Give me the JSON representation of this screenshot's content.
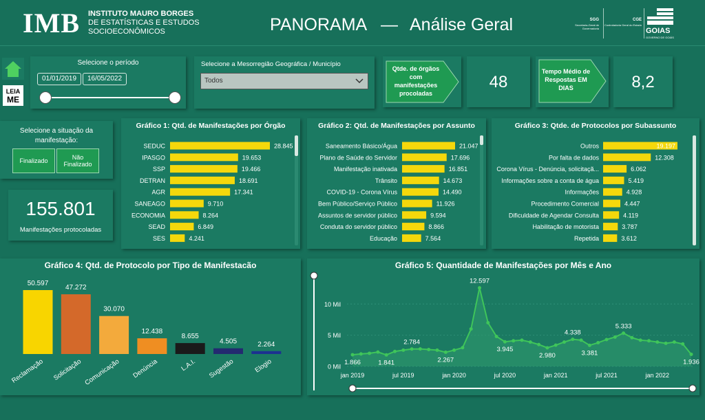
{
  "header": {
    "logo": "IMB",
    "institute": [
      "INSTITUTO MAURO BORGES",
      "DE ESTATÍSTICAS E ESTUDOS",
      "SOCIOECONÔMICOS"
    ],
    "title": "PANORAMA",
    "separator": "—",
    "subtitle": "Análise Geral",
    "partners": [
      {
        "abbr": "SGG",
        "name": "Secretaria-Geral de Governadoria"
      },
      {
        "abbr": "CGE",
        "name": "Controladoria Geral do Estado"
      },
      {
        "abbr": "GOIAS",
        "name": "GOVERNO DE GOIÁS"
      }
    ]
  },
  "filters": {
    "read_me": [
      "LEIA",
      "ME"
    ],
    "period_label": "Selecione o período",
    "start_date": "01/01/2019",
    "end_date": "16/05/2022",
    "region_label": "Selecione a Mesorregião Geográfica / Município",
    "region_value": "Todos",
    "status_label": "Selecione a situação da manifestação:",
    "status_options": [
      "Finalizado",
      "Não Finalizado"
    ]
  },
  "kpis": [
    {
      "label": "Qtde. de órgãos com manifestações procoladas",
      "value": "48"
    },
    {
      "label": "Tempo Médio de Respostas EM DIAS",
      "value": "8,2"
    },
    {
      "value": "155.801",
      "label": "Manifestações protocoladas"
    }
  ],
  "chart_data": [
    {
      "type": "bar",
      "orientation": "horizontal",
      "title": "Gráfico 1: Qtd. de Manifestações por Órgão",
      "color": "#f5d80c",
      "categories": [
        "SEDUC",
        "IPASGO",
        "SSP",
        "DETRAN",
        "AGR",
        "SANEAGO",
        "ECONOMIA",
        "SEAD",
        "SES"
      ],
      "values": [
        28845,
        19653,
        19466,
        18691,
        17341,
        9710,
        8264,
        6849,
        4241
      ],
      "value_labels": [
        "28.845",
        "19.653",
        "19.466",
        "18.691",
        "17.341",
        "9.710",
        "8.264",
        "6.849",
        "4.241"
      ]
    },
    {
      "type": "bar",
      "orientation": "horizontal",
      "title": "Gráfico 2: Qtd. de Manifestações por Assunto",
      "color": "#f5d80c",
      "categories": [
        "Saneamento Básico/Água",
        "Plano de Saúde do Servidor",
        "Manifestação inativada",
        "Trânsito",
        "COVID-19 - Corona Vírus",
        "Bem Público/Serviço Público",
        "Assuntos de servidor público",
        "Conduta do servidor público",
        "Educação"
      ],
      "values": [
        21047,
        17696,
        16851,
        14673,
        14490,
        11926,
        9594,
        8866,
        7564
      ],
      "value_labels": [
        "21.047",
        "17.696",
        "16.851",
        "14.673",
        "14.490",
        "11.926",
        "9.594",
        "8.866",
        "7.564"
      ]
    },
    {
      "type": "bar",
      "orientation": "horizontal",
      "title": "Gráfico 3: Qtde. de Protocolos por Subassunto",
      "color": "#f5d80c",
      "categories": [
        "Outros",
        "Por falta de dados",
        "Corona Vírus - Denúncia, solicitaçã...",
        "Informações sobre a conta de água",
        "Informações",
        "Procedimento Comercial",
        "Dificuldade de Agendar Consulta",
        "Habilitação de motorista",
        "Repetida"
      ],
      "values": [
        19197,
        12308,
        6062,
        5419,
        4928,
        4447,
        4119,
        3787,
        3612
      ],
      "value_labels": [
        "19.197",
        "12.308",
        "6.062",
        "5.419",
        "4.928",
        "4.447",
        "4.119",
        "3.787",
        "3.612"
      ]
    },
    {
      "type": "bar",
      "orientation": "vertical",
      "title": "Gráfico 4: Qtd. de Protocolo por Tipo de Manifestacão",
      "categories": [
        "Reclamação",
        "Solicitação",
        "Comunicação",
        "Denúncia",
        "L.A.I.",
        "Sugestão",
        "Elogio"
      ],
      "values": [
        50597,
        47272,
        30070,
        12438,
        8655,
        4505,
        2264
      ],
      "value_labels": [
        "50.597",
        "47.272",
        "30.070",
        "12.438",
        "8.655",
        "4.505",
        "2.264"
      ],
      "colors": [
        "#f8d500",
        "#d4692a",
        "#f3aa3c",
        "#ef8e22",
        "#1a1a1a",
        "#232a70",
        "#1c3190"
      ]
    },
    {
      "type": "line",
      "title": "Gráfico 5: Quantidade de Manifestações por Mês e Ano",
      "color": "#3fc55a",
      "categories": [
        "jan 2019",
        null,
        null,
        null,
        null,
        null,
        "jul 2019",
        null,
        null,
        null,
        null,
        null,
        "jan 2020",
        null,
        null,
        null,
        null,
        null,
        "jul 2020",
        null,
        null,
        null,
        null,
        null,
        "jan 2021",
        null,
        null,
        null,
        null,
        null,
        "jul 2021",
        null,
        null,
        null,
        null,
        null,
        "jan 2022",
        null,
        null,
        null,
        null
      ],
      "values": [
        1866,
        2000,
        2100,
        2300,
        1841,
        2400,
        2600,
        2784,
        2800,
        2700,
        2600,
        2267,
        2600,
        3000,
        6000,
        12597,
        7000,
        4800,
        3945,
        4100,
        4200,
        3900,
        3500,
        2980,
        3400,
        3900,
        4338,
        4200,
        3381,
        3800,
        4300,
        4700,
        5333,
        4600,
        4200,
        4100,
        3900,
        3700,
        3900,
        3600,
        1936
      ],
      "value_labels": [
        "1.866",
        null,
        null,
        null,
        "1.841",
        null,
        null,
        "2.784",
        null,
        null,
        null,
        "2.267",
        null,
        null,
        null,
        "12.597",
        null,
        null,
        "3.945",
        null,
        null,
        null,
        null,
        "2.980",
        null,
        null,
        "4.338",
        null,
        "3.381",
        null,
        null,
        null,
        "5.333",
        null,
        null,
        null,
        null,
        null,
        null,
        null,
        "1.936"
      ],
      "ylim": [
        0,
        14000
      ],
      "yticks": [
        {
          "value": 0,
          "label": "0 Mil"
        },
        {
          "value": 5000,
          "label": "5 Mil"
        },
        {
          "value": 10000,
          "label": "10 Mil"
        }
      ],
      "grid": true
    }
  ]
}
